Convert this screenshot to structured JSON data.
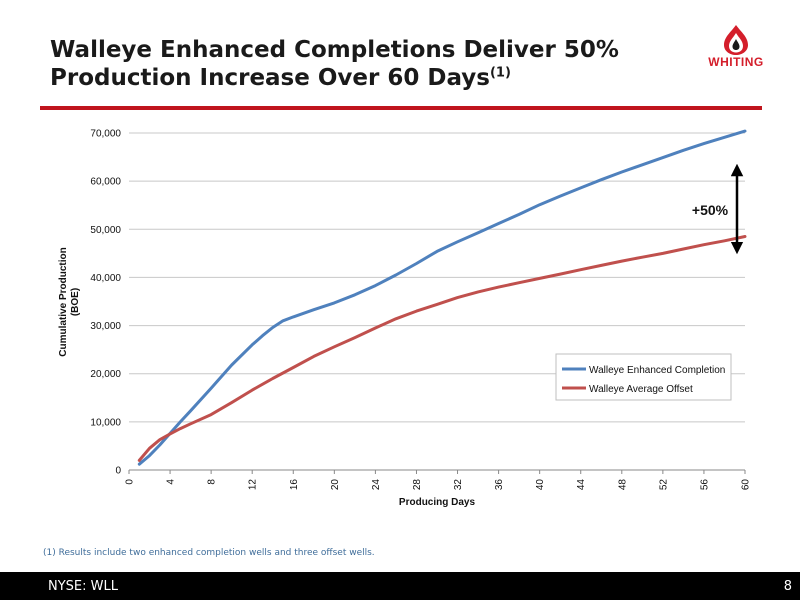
{
  "slide": {
    "title_line1": "Walleye Enhanced Completions Deliver 50%",
    "title_line2": "Production Increase Over 60 Days",
    "title_footnote_marker": "(1)",
    "logo_text": "WHITING",
    "footnote": "(1) Results include two enhanced completion wells and three offset wells.",
    "ticker": "NYSE: WLL",
    "page_number": "8"
  },
  "colors": {
    "rule": "#c0151d",
    "logo": "#d41e2b",
    "footer_bg": "#000000",
    "footnote_text": "#3f6d9a"
  },
  "chart_data": {
    "type": "line",
    "title": "",
    "xlabel": "Producing Days",
    "ylabel": "Cumulative Production (BOE)",
    "ylabel_lines": [
      "Cumulative Production",
      "(BOE)"
    ],
    "xlim": [
      0,
      60
    ],
    "ylim": [
      0,
      70000
    ],
    "x_ticks": [
      "0",
      "4",
      "8",
      "12",
      "16",
      "20",
      "24",
      "28",
      "32",
      "36",
      "40",
      "44",
      "48",
      "52",
      "56",
      "60"
    ],
    "y_ticks": [
      "0",
      "10,000",
      "20,000",
      "30,000",
      "40,000",
      "50,000",
      "60,000",
      "70,000"
    ],
    "grid": "horizontal",
    "legend_position": "right",
    "annotation": "+50%",
    "series": [
      {
        "name": "Walleye Enhanced Completion",
        "color": "#4f81bd",
        "x": [
          1,
          2,
          3,
          4,
          5,
          6,
          8,
          10,
          12,
          13,
          14,
          15,
          16,
          18,
          20,
          22,
          24,
          26,
          28,
          30,
          32,
          34,
          36,
          38,
          40,
          42,
          44,
          46,
          48,
          50,
          52,
          54,
          56,
          58,
          60
        ],
        "y": [
          1200,
          3000,
          5200,
          7600,
          10000,
          12300,
          17000,
          21800,
          26000,
          27900,
          29600,
          31000,
          31800,
          33300,
          34700,
          36400,
          38300,
          40500,
          42900,
          45400,
          47400,
          49300,
          51200,
          53100,
          55100,
          56900,
          58600,
          60300,
          61900,
          63400,
          64900,
          66400,
          67800,
          69100,
          70400
        ]
      },
      {
        "name": "Walleye Average Offset",
        "color": "#c0504d",
        "x": [
          1,
          2,
          3,
          4,
          5,
          6,
          8,
          10,
          12,
          14,
          16,
          18,
          20,
          22,
          24,
          26,
          28,
          30,
          32,
          34,
          36,
          38,
          40,
          42,
          44,
          46,
          48,
          50,
          52,
          54,
          56,
          58,
          60
        ],
        "y": [
          2000,
          4500,
          6300,
          7500,
          8600,
          9600,
          11500,
          14000,
          16600,
          19000,
          21300,
          23600,
          25600,
          27500,
          29500,
          31400,
          33000,
          34400,
          35800,
          37000,
          38000,
          38900,
          39800,
          40700,
          41600,
          42500,
          43400,
          44200,
          45000,
          45900,
          46800,
          47600,
          48500
        ]
      }
    ]
  }
}
